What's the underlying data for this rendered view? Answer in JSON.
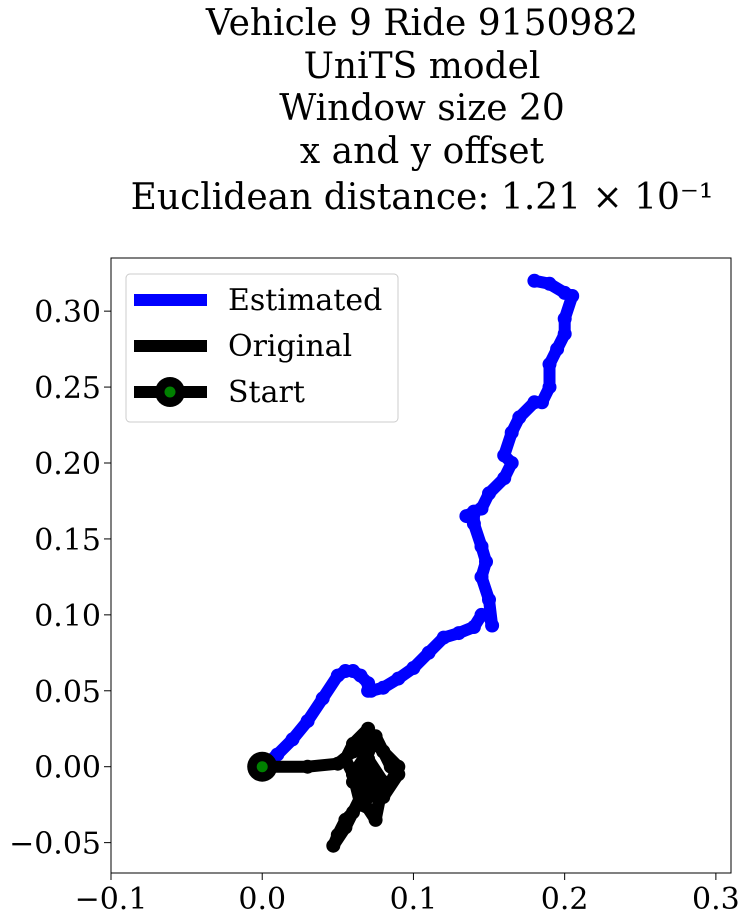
{
  "chart_data": {
    "type": "line",
    "title_lines": [
      "Vehicle 9 Ride 9150982",
      "UniTS model",
      "Window size 20",
      "x and y offset",
      "Euclidean distance: 1.21 × 10⁻¹"
    ],
    "xlim": [
      -0.1,
      0.31
    ],
    "ylim": [
      -0.07,
      0.335
    ],
    "xticks": [
      -0.1,
      0.0,
      0.1,
      0.2,
      0.3
    ],
    "xtick_labels": [
      "−0.1",
      "0.0",
      "0.1",
      "0.2",
      "0.3"
    ],
    "yticks": [
      -0.05,
      0.0,
      0.05,
      0.1,
      0.15,
      0.2,
      0.25,
      0.3
    ],
    "ytick_labels": [
      "−0.05",
      "0.00",
      "0.05",
      "0.10",
      "0.15",
      "0.20",
      "0.25",
      "0.30"
    ],
    "grid": false,
    "legend_position": "upper-left",
    "series": [
      {
        "name": "Estimated",
        "color": "#0000ff",
        "x": [
          0.0,
          0.01,
          0.02,
          0.03,
          0.04,
          0.05,
          0.055,
          0.06,
          0.065,
          0.07,
          0.07,
          0.072,
          0.08,
          0.09,
          0.1,
          0.11,
          0.12,
          0.13,
          0.14,
          0.145,
          0.15,
          0.152,
          0.15,
          0.145,
          0.148,
          0.145,
          0.14,
          0.14,
          0.135,
          0.14,
          0.145,
          0.15,
          0.16,
          0.165,
          0.16,
          0.165,
          0.17,
          0.18,
          0.185,
          0.19,
          0.19,
          0.195,
          0.2,
          0.2,
          0.205,
          0.2,
          0.19,
          0.18
        ],
        "y": [
          0.0,
          0.008,
          0.018,
          0.03,
          0.045,
          0.06,
          0.063,
          0.063,
          0.06,
          0.055,
          0.05,
          0.05,
          0.052,
          0.058,
          0.065,
          0.075,
          0.085,
          0.088,
          0.092,
          0.1,
          0.1,
          0.093,
          0.11,
          0.125,
          0.135,
          0.145,
          0.16,
          0.167,
          0.165,
          0.168,
          0.17,
          0.18,
          0.19,
          0.2,
          0.205,
          0.22,
          0.23,
          0.24,
          0.24,
          0.25,
          0.265,
          0.275,
          0.285,
          0.295,
          0.31,
          0.312,
          0.318,
          0.32
        ]
      },
      {
        "name": "Original",
        "color": "#000000",
        "x": [
          0.0,
          0.03,
          0.05,
          0.06,
          0.07,
          0.08,
          0.09,
          0.085,
          0.07,
          0.06,
          0.07,
          0.08,
          0.075,
          0.065,
          0.06,
          0.07,
          0.08,
          0.075,
          0.065,
          0.06,
          0.055,
          0.05,
          0.047,
          0.055,
          0.065,
          0.07,
          0.06,
          0.055,
          0.06,
          0.07,
          0.075,
          0.08,
          0.085,
          0.09,
          0.08,
          0.07
        ],
        "y": [
          0.0,
          0.0,
          0.002,
          0.01,
          0.02,
          0.01,
          0.0,
          -0.01,
          -0.02,
          -0.01,
          0.0,
          -0.015,
          -0.03,
          -0.025,
          -0.005,
          0.005,
          -0.01,
          -0.035,
          -0.02,
          -0.03,
          -0.035,
          -0.045,
          -0.052,
          -0.04,
          -0.02,
          0.025,
          0.015,
          0.005,
          -0.005,
          0.01,
          0.02,
          0.01,
          0.0,
          -0.005,
          -0.02,
          -0.01
        ]
      },
      {
        "name": "Start",
        "color": "#000000",
        "marker_face": "#008000",
        "x": [
          0.0
        ],
        "y": [
          0.0
        ]
      }
    ]
  }
}
